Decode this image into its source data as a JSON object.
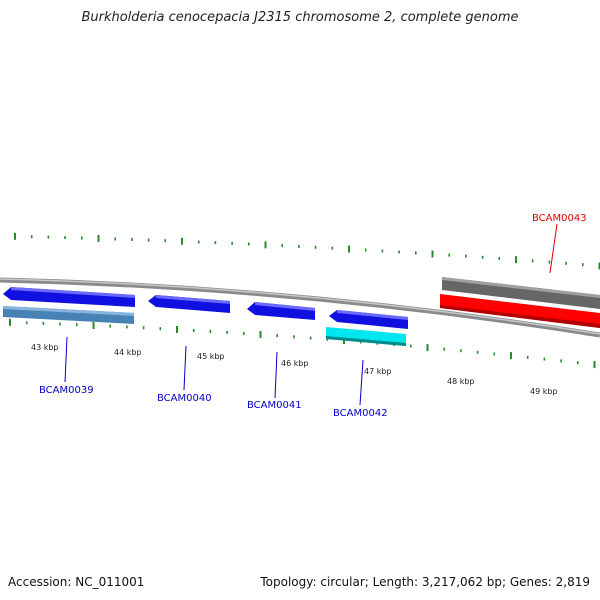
{
  "title": "Burkholderia cenocepacia J2315 chromosome 2, complete genome",
  "footer": {
    "accession": "Accession: NC_011001",
    "summary": "Topology: circular; Length: 3,217,062 bp; Genes: 2,819"
  },
  "colors": {
    "forward_gene": "#1010e0",
    "reverse_gene_steel": "#4682b4",
    "reverse_gene_cyan": "#00e5ee",
    "gray_feature": "#666666",
    "red_feature": "#ff0000",
    "tick": "#2a8a2a",
    "label_blue": "#0000cc",
    "label_red": "#e00000"
  },
  "scale_labels": [
    "43 kbp",
    "44 kbp",
    "45 kbp",
    "46 kbp",
    "47 kbp",
    "48 kbp",
    "49 kbp"
  ],
  "genes": [
    {
      "label": "BCAM0039",
      "color": "label_blue"
    },
    {
      "label": "BCAM0040",
      "color": "label_blue"
    },
    {
      "label": "BCAM0041",
      "color": "label_blue"
    },
    {
      "label": "BCAM0042",
      "color": "label_blue"
    },
    {
      "label": "BCAM0043",
      "color": "label_red"
    }
  ]
}
